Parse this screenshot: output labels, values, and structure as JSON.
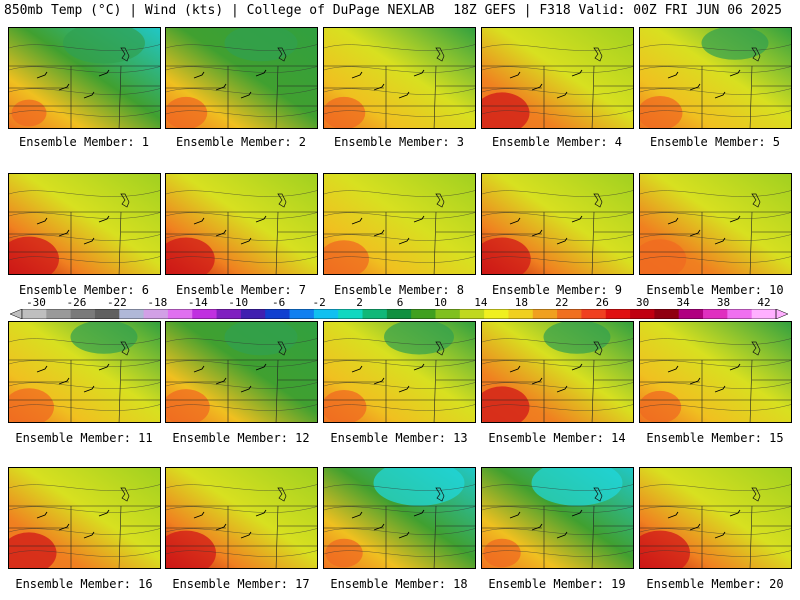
{
  "header": {
    "title_left": "850mb Temp (°C) | Wind (kts) | College of DuPage NEXLAB",
    "title_right": "18Z GEFS | F318 Valid: 00Z FRI JUN 06 2025"
  },
  "colorbar": {
    "labels": [
      "-30",
      "-26",
      "-22",
      "-18",
      "-14",
      "-10",
      "-6",
      "-2",
      "2",
      "6",
      "10",
      "14",
      "18",
      "22",
      "26",
      "30",
      "34",
      "38",
      "42"
    ],
    "colors": [
      "#bfbfbf",
      "#9a9a9a",
      "#7a7a7a",
      "#606060",
      "#b0b8d8",
      "#d2a0e6",
      "#e070f0",
      "#c030e0",
      "#8020c0",
      "#4020b0",
      "#1040d0",
      "#1080f0",
      "#10c0f0",
      "#10d8c0",
      "#10b878",
      "#109040",
      "#40a020",
      "#80c020",
      "#c0d820",
      "#f0f020",
      "#f0d020",
      "#f0a020",
      "#f07020",
      "#f04020",
      "#e01010",
      "#c00010",
      "#900010",
      "#b00080",
      "#e030c0",
      "#f070f0",
      "#ffb0ff"
    ]
  },
  "members": [
    {
      "label": "Ensemble Member: 1",
      "warm": 0.3,
      "cool": 0.7
    },
    {
      "label": "Ensemble Member: 2",
      "warm": 0.45,
      "cool": 0.55
    },
    {
      "label": "Ensemble Member: 3",
      "warm": 0.45,
      "cool": 0.4
    },
    {
      "label": "Ensemble Member: 4",
      "warm": 0.7,
      "cool": 0.2
    },
    {
      "label": "Ensemble Member: 5",
      "warm": 0.5,
      "cool": 0.45
    },
    {
      "label": "Ensemble Member: 6",
      "warm": 0.8,
      "cool": 0.15
    },
    {
      "label": "Ensemble Member: 7",
      "warm": 0.75,
      "cool": 0.3
    },
    {
      "label": "Ensemble Member: 8",
      "warm": 0.6,
      "cool": 0.1
    },
    {
      "label": "Ensemble Member: 9",
      "warm": 0.75,
      "cool": 0.1
    },
    {
      "label": "Ensemble Member: 10",
      "warm": 0.65,
      "cool": 0.15
    },
    {
      "label": "Ensemble Member: 11",
      "warm": 0.6,
      "cool": 0.45
    },
    {
      "label": "Ensemble Member: 12",
      "warm": 0.55,
      "cool": 0.55
    },
    {
      "label": "Ensemble Member: 13",
      "warm": 0.5,
      "cool": 0.5
    },
    {
      "label": "Ensemble Member: 14",
      "warm": 0.7,
      "cool": 0.45
    },
    {
      "label": "Ensemble Member: 15",
      "warm": 0.45,
      "cool": 0.4
    },
    {
      "label": "Ensemble Member: 16",
      "warm": 0.7,
      "cool": 0.15
    },
    {
      "label": "Ensemble Member: 17",
      "warm": 0.8,
      "cool": 0.1
    },
    {
      "label": "Ensemble Member: 18",
      "warm": 0.35,
      "cool": 0.85
    },
    {
      "label": "Ensemble Member: 19",
      "warm": 0.35,
      "cool": 0.85
    },
    {
      "label": "Ensemble Member: 20",
      "warm": 0.8,
      "cool": 0.1
    }
  ]
}
